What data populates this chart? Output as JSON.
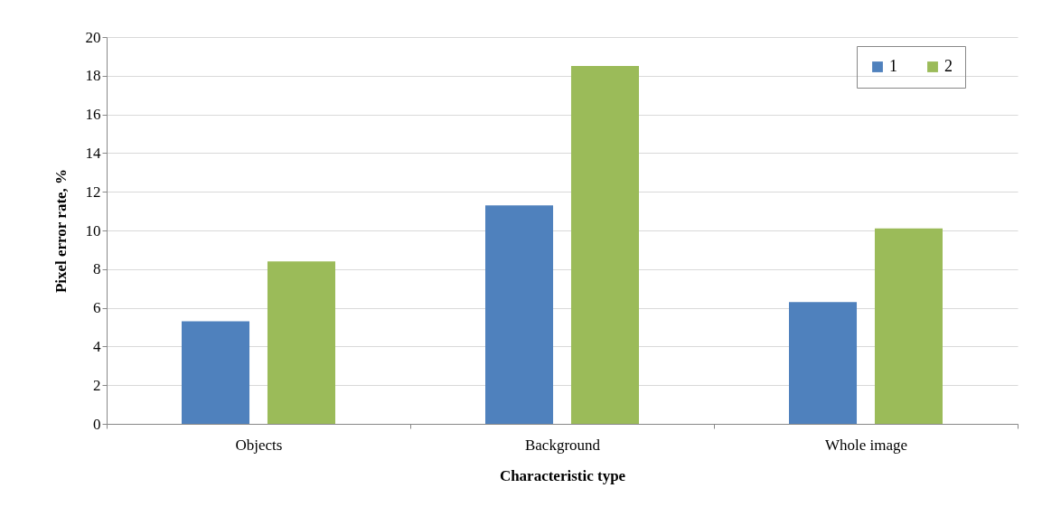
{
  "chart_data": {
    "type": "bar",
    "xlabel": "Characteristic type",
    "ylabel": "Pixel error rate, %",
    "categories": [
      "Objects",
      "Background",
      "Whole image"
    ],
    "series": [
      {
        "name": "1",
        "color": "#4f81bd",
        "values": [
          5.3,
          11.3,
          6.3
        ]
      },
      {
        "name": "2",
        "color": "#9bbb59",
        "values": [
          8.4,
          18.5,
          10.1
        ]
      }
    ],
    "ylim": [
      0,
      20
    ],
    "yticks": [
      0,
      2,
      4,
      6,
      8,
      10,
      12,
      14,
      16,
      18,
      20
    ],
    "grid": "y",
    "legend": "top right"
  }
}
